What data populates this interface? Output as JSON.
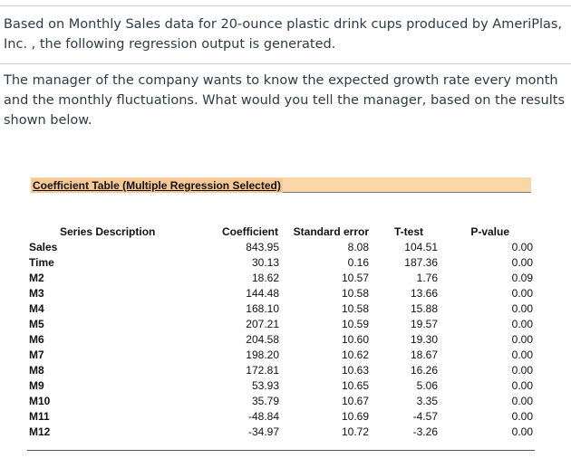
{
  "question": {
    "paragraph1": "Based on Monthly Sales data for 20-ounce plastic drink cups produced by AmeriPlas, Inc. , the following regression output is generated.",
    "paragraph2": "The manager of the company wants to know the expected growth rate every month and the monthly fluctuations. What would you tell the manager, based on the results shown below."
  },
  "table": {
    "title": "Coefficient Table (Multiple Regression Selected)",
    "headers": [
      "Series Description",
      "Coefficient",
      "Standard error",
      "T-test",
      "P-value"
    ],
    "rows": [
      [
        "Sales",
        "843.95",
        "8.08",
        "104.51",
        "0.00"
      ],
      [
        "Time",
        "30.13",
        "0.16",
        "187.36",
        "0.00"
      ],
      [
        "M2",
        "18.62",
        "10.57",
        "1.76",
        "0.09"
      ],
      [
        "M3",
        "144.48",
        "10.58",
        "13.66",
        "0.00"
      ],
      [
        "M4",
        "168.10",
        "10.58",
        "15.88",
        "0.00"
      ],
      [
        "M5",
        "207.21",
        "10.59",
        "19.57",
        "0.00"
      ],
      [
        "M6",
        "204.58",
        "10.60",
        "19.30",
        "0.00"
      ],
      [
        "M7",
        "198.20",
        "10.62",
        "18.67",
        "0.00"
      ],
      [
        "M8",
        "172.81",
        "10.63",
        "16.26",
        "0.00"
      ],
      [
        "M9",
        "53.93",
        "10.65",
        "5.06",
        "0.00"
      ],
      [
        "M10",
        "35.79",
        "10.67",
        "3.35",
        "0.00"
      ],
      [
        "M11",
        "-48.84",
        "10.69",
        "-4.57",
        "0.00"
      ],
      [
        "M12",
        "-34.97",
        "10.72",
        "-3.26",
        "0.00"
      ]
    ]
  }
}
